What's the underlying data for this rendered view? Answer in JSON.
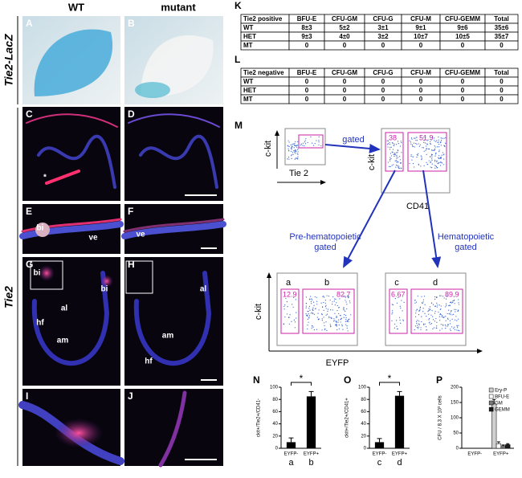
{
  "columns": [
    "WT",
    "mutant"
  ],
  "row_labels": [
    "Tie2-LacZ",
    "Tie2"
  ],
  "image_panels": [
    {
      "label": "A",
      "notes": []
    },
    {
      "label": "B",
      "notes": []
    },
    {
      "label": "C",
      "notes": [
        "*"
      ]
    },
    {
      "label": "D",
      "notes": []
    },
    {
      "label": "E",
      "notes": [
        "bi",
        "ve"
      ]
    },
    {
      "label": "F",
      "notes": [
        "ve"
      ]
    },
    {
      "label": "G",
      "notes": [
        "bi",
        "bi",
        "al",
        "hf",
        "am"
      ]
    },
    {
      "label": "H",
      "notes": [
        "al",
        "am",
        "hf"
      ]
    },
    {
      "label": "I",
      "notes": []
    },
    {
      "label": "J",
      "notes": []
    }
  ],
  "tables": [
    {
      "label": "K",
      "header": [
        "Tie2 positive",
        "BFU-E",
        "CFU-GM",
        "CFU-G",
        "CFU-M",
        "CFU-GEMM",
        "Total"
      ],
      "rows": [
        [
          "WT",
          "8±3",
          "5±2",
          "3±1",
          "9±1",
          "9±6",
          "35±6"
        ],
        [
          "HET",
          "9±3",
          "4±0",
          "3±2",
          "10±7",
          "10±5",
          "35±7"
        ],
        [
          "MT",
          "0",
          "0",
          "0",
          "0",
          "0",
          "0"
        ]
      ]
    },
    {
      "label": "L",
      "header": [
        "Tie2 negative",
        "BFU-E",
        "CFU-GM",
        "CFU-G",
        "CFU-M",
        "CFU-GEMM",
        "Total"
      ],
      "rows": [
        [
          "WT",
          "0",
          "0",
          "0",
          "0",
          "0",
          "0"
        ],
        [
          "HET",
          "0",
          "0",
          "0",
          "0",
          "0",
          "0"
        ],
        [
          "MT",
          "0",
          "0",
          "0",
          "0",
          "0",
          "0"
        ]
      ]
    }
  ],
  "flow": {
    "label": "M",
    "gate_plot": {
      "gate_text": "gated",
      "y_label": "c-kit",
      "x_label": "Tie 2"
    },
    "cd41_plot": {
      "gates": [
        "38",
        "51.9"
      ],
      "y_label": "c-kit",
      "x_label": "CD41"
    },
    "branches": [
      [
        "Pre-hematopoietic",
        "gated"
      ],
      [
        "Hematopoietic",
        "gated"
      ]
    ],
    "eyfp_plots": [
      {
        "gates": [
          "a",
          "b"
        ],
        "percents": [
          "12.9",
          "82.7"
        ]
      },
      {
        "gates": [
          "c",
          "d"
        ],
        "percents": [
          "6.67",
          "89.9"
        ]
      }
    ],
    "y_label": "c-kit",
    "x_label": "EYFP"
  },
  "chart_data": [
    {
      "type": "bar",
      "panel": "N",
      "y_label": "ckit+/Tie2+/CD41-",
      "categories": [
        "EYFP-",
        "EYFP+"
      ],
      "sublabels": [
        "a",
        "b"
      ],
      "values": [
        10,
        85
      ],
      "errors": [
        7,
        8
      ],
      "color": "#000000",
      "ylim": [
        0,
        100
      ],
      "yticks": [
        0,
        20,
        40,
        60,
        80,
        100
      ],
      "significance": "*"
    },
    {
      "type": "bar",
      "panel": "O",
      "y_label": "ckit+/Tie2+/CD41+",
      "categories": [
        "EYFP-",
        "EYFP+"
      ],
      "sublabels": [
        "c",
        "d"
      ],
      "values": [
        10,
        86
      ],
      "errors": [
        6,
        7
      ],
      "color": "#000000",
      "ylim": [
        0,
        100
      ],
      "yticks": [
        0,
        20,
        40,
        60,
        80,
        100
      ],
      "significance": "*"
    },
    {
      "type": "grouped_bar",
      "panel": "P",
      "y_label": "CFU / 8.3 X 10³ cells",
      "categories": [
        "EYFP-",
        "EYFP+"
      ],
      "series": [
        {
          "name": "Ery-P",
          "color": "#cfcfcf",
          "values": [
            0,
            145
          ],
          "errors": [
            0,
            15
          ]
        },
        {
          "name": "BFU-E",
          "color": "#ffffff",
          "values": [
            0,
            15
          ],
          "errors": [
            0,
            6
          ]
        },
        {
          "name": "GM",
          "color": "#7a7a7a",
          "values": [
            0,
            8
          ],
          "errors": [
            0,
            3
          ]
        },
        {
          "name": "GEMM",
          "color": "#1a1a1a",
          "values": [
            0,
            12
          ],
          "errors": [
            0,
            3
          ]
        }
      ],
      "ylim": [
        0,
        200
      ],
      "yticks": [
        0,
        50,
        100,
        150,
        200
      ]
    }
  ]
}
